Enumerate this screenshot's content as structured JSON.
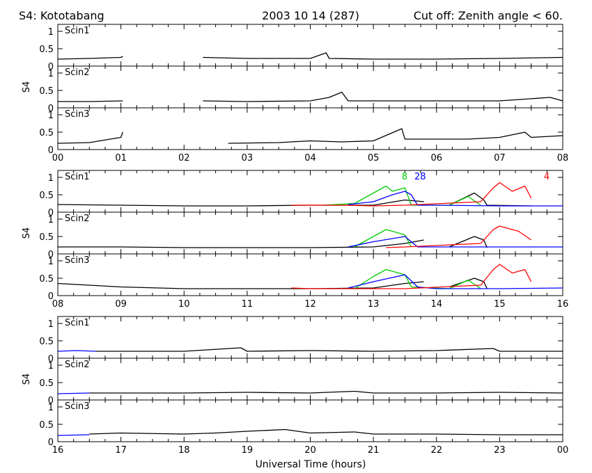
{
  "header": {
    "station": "S4: Kototabang",
    "date": "2003 10 14 (287)",
    "cutoff": "Cut off: Zenith angle < 60."
  },
  "chart_data": {
    "type": "line",
    "xlabel": "Universal Time (hours)",
    "ylabel": "S4",
    "ylim": [
      0,
      1.2
    ],
    "yticks": [
      "1",
      "0.5",
      "0"
    ],
    "grid": false,
    "rows": [
      {
        "range": [
          0,
          8
        ],
        "xticks": [
          "00",
          "01",
          "02",
          "03",
          "04",
          "05",
          "06",
          "07",
          "08"
        ],
        "panels": [
          {
            "label": "Scin1",
            "series": [
              {
                "color": "#000000",
                "x": [
                  0.0,
                  0.5,
                  1.0,
                  1.03
                ],
                "y": [
                  0.2,
                  0.22,
                  0.25,
                  0.28
                ]
              },
              {
                "color": "#000000",
                "x": [
                  2.3,
                  3.0,
                  4.0,
                  4.25,
                  4.3,
                  5.0,
                  6.0,
                  7.0,
                  8.0
                ],
                "y": [
                  0.25,
                  0.22,
                  0.22,
                  0.38,
                  0.22,
                  0.2,
                  0.2,
                  0.22,
                  0.25
                ]
              }
            ]
          },
          {
            "label": "Scin2",
            "series": [
              {
                "color": "#000000",
                "x": [
                  0.0,
                  0.5,
                  1.03
                ],
                "y": [
                  0.18,
                  0.18,
                  0.2
                ]
              },
              {
                "color": "#000000",
                "x": [
                  2.3,
                  3.0,
                  4.0,
                  4.3,
                  4.5,
                  4.6,
                  5.0,
                  6.0,
                  7.0,
                  7.8,
                  8.0
                ],
                "y": [
                  0.2,
                  0.18,
                  0.2,
                  0.3,
                  0.45,
                  0.2,
                  0.2,
                  0.2,
                  0.2,
                  0.3,
                  0.2
                ]
              }
            ]
          },
          {
            "label": "Scin3",
            "series": [
              {
                "color": "#000000",
                "x": [
                  0.0,
                  0.5,
                  1.0,
                  1.03
                ],
                "y": [
                  0.18,
                  0.2,
                  0.35,
                  0.5
                ]
              },
              {
                "color": "#000000",
                "x": [
                  2.7,
                  3.5,
                  4.0,
                  4.5,
                  5.0,
                  5.45,
                  5.5,
                  6.0,
                  6.5,
                  7.0,
                  7.4,
                  7.5,
                  8.0
                ],
                "y": [
                  0.18,
                  0.2,
                  0.25,
                  0.22,
                  0.25,
                  0.6,
                  0.3,
                  0.3,
                  0.3,
                  0.35,
                  0.5,
                  0.35,
                  0.4
                ]
              }
            ]
          }
        ]
      },
      {
        "range": [
          8,
          16
        ],
        "xticks": [
          "08",
          "09",
          "10",
          "11",
          "12",
          "13",
          "14",
          "15",
          "16"
        ],
        "panels": [
          {
            "label": "Scin1",
            "prn_labels": [
              {
                "text": "8",
                "x": 13.45,
                "color": "#00cc00"
              },
              {
                "text": "28",
                "x": 13.65,
                "color": "#0000ff"
              },
              {
                "text": "4",
                "x": 15.7,
                "color": "#ff0000"
              }
            ],
            "series": [
              {
                "color": "#000000",
                "x": [
                  8.0,
                  9.0,
                  10.0,
                  11.0,
                  12.0,
                  13.0,
                  13.5,
                  13.8
                ],
                "y": [
                  0.22,
                  0.2,
                  0.18,
                  0.18,
                  0.2,
                  0.2,
                  0.35,
                  0.3
                ]
              },
              {
                "color": "#000000",
                "x": [
                  14.2,
                  14.6,
                  14.75,
                  14.8,
                  15.5
                ],
                "y": [
                  0.2,
                  0.55,
                  0.35,
                  0.2,
                  0.18
                ]
              },
              {
                "color": "#00cc00",
                "x": [
                  12.2,
                  12.7,
                  13.0,
                  13.2,
                  13.3,
                  13.5,
                  13.6,
                  14.2,
                  14.5,
                  14.7
                ],
                "y": [
                  0.2,
                  0.25,
                  0.55,
                  0.75,
                  0.6,
                  0.7,
                  0.2,
                  0.2,
                  0.45,
                  0.2
                ]
              },
              {
                "color": "#0000ff",
                "x": [
                  12.6,
                  13.0,
                  13.3,
                  13.5,
                  13.6,
                  13.7,
                  14.0,
                  15.0,
                  16.0
                ],
                "y": [
                  0.22,
                  0.3,
                  0.5,
                  0.6,
                  0.5,
                  0.2,
                  0.2,
                  0.18,
                  0.18
                ]
              },
              {
                "color": "#ff0000",
                "x": [
                  11.7,
                  12.0,
                  12.5,
                  13.0,
                  13.5,
                  14.7,
                  14.9,
                  15.0,
                  15.2,
                  15.4,
                  15.5
                ],
                "y": [
                  0.2,
                  0.2,
                  0.2,
                  0.18,
                  0.2,
                  0.3,
                  0.7,
                  0.85,
                  0.6,
                  0.75,
                  0.4
                ]
              }
            ]
          },
          {
            "label": "Scin2",
            "series": [
              {
                "color": "#000000",
                "x": [
                  8.0,
                  9.0,
                  10.0,
                  11.0,
                  12.0,
                  13.0,
                  13.5,
                  13.8
                ],
                "y": [
                  0.2,
                  0.2,
                  0.18,
                  0.18,
                  0.18,
                  0.2,
                  0.3,
                  0.4
                ]
              },
              {
                "color": "#000000",
                "x": [
                  14.2,
                  14.6,
                  14.75,
                  14.8
                ],
                "y": [
                  0.2,
                  0.5,
                  0.4,
                  0.18
                ]
              },
              {
                "color": "#00cc00",
                "x": [
                  12.7,
                  13.0,
                  13.2,
                  13.5,
                  13.6
                ],
                "y": [
                  0.2,
                  0.5,
                  0.7,
                  0.55,
                  0.2
                ]
              },
              {
                "color": "#0000ff",
                "x": [
                  12.6,
                  13.0,
                  13.5,
                  13.7,
                  14.0,
                  15.0,
                  16.0
                ],
                "y": [
                  0.2,
                  0.35,
                  0.5,
                  0.2,
                  0.2,
                  0.2,
                  0.2
                ]
              },
              {
                "color": "#ff0000",
                "x": [
                  13.2,
                  13.5,
                  14.7,
                  14.9,
                  15.0,
                  15.3,
                  15.5
                ],
                "y": [
                  0.18,
                  0.2,
                  0.3,
                  0.7,
                  0.8,
                  0.65,
                  0.4
                ]
              }
            ]
          },
          {
            "label": "Scin3",
            "series": [
              {
                "color": "#000000",
                "x": [
                  8.0,
                  8.5,
                  9.0,
                  10.0,
                  11.0,
                  12.0,
                  13.0,
                  13.5,
                  13.8
                ],
                "y": [
                  0.35,
                  0.3,
                  0.25,
                  0.2,
                  0.2,
                  0.2,
                  0.22,
                  0.35,
                  0.4
                ]
              },
              {
                "color": "#000000",
                "x": [
                  14.2,
                  14.6,
                  14.75,
                  14.8
                ],
                "y": [
                  0.25,
                  0.5,
                  0.4,
                  0.2
                ]
              },
              {
                "color": "#00cc00",
                "x": [
                  12.7,
                  13.0,
                  13.2,
                  13.5,
                  13.6,
                  14.2,
                  14.5,
                  14.7
                ],
                "y": [
                  0.2,
                  0.55,
                  0.75,
                  0.6,
                  0.25,
                  0.2,
                  0.45,
                  0.2
                ]
              },
              {
                "color": "#0000ff",
                "x": [
                  12.6,
                  13.0,
                  13.5,
                  13.7,
                  14.0,
                  15.0,
                  16.0
                ],
                "y": [
                  0.22,
                  0.4,
                  0.6,
                  0.25,
                  0.2,
                  0.2,
                  0.22
                ]
              },
              {
                "color": "#ff0000",
                "x": [
                  11.7,
                  12.0,
                  12.5,
                  13.5,
                  14.7,
                  14.9,
                  15.0,
                  15.2,
                  15.4,
                  15.5
                ],
                "y": [
                  0.22,
                  0.2,
                  0.2,
                  0.2,
                  0.3,
                  0.75,
                  0.9,
                  0.65,
                  0.75,
                  0.4
                ]
              }
            ]
          }
        ]
      },
      {
        "range": [
          16,
          24
        ],
        "xticks": [
          "16",
          "17",
          "18",
          "19",
          "20",
          "21",
          "22",
          "23",
          "00"
        ],
        "panels": [
          {
            "label": "Scin1",
            "series": [
              {
                "color": "#0000ff",
                "x": [
                  16.0,
                  16.3,
                  16.6
                ],
                "y": [
                  0.2,
                  0.22,
                  0.2
                ]
              },
              {
                "color": "#000000",
                "x": [
                  16.6,
                  17.0,
                  18.0,
                  18.9,
                  19.0,
                  20.0,
                  21.0,
                  22.0,
                  22.9,
                  23.0,
                  24.0
                ],
                "y": [
                  0.2,
                  0.2,
                  0.2,
                  0.3,
                  0.2,
                  0.22,
                  0.2,
                  0.22,
                  0.28,
                  0.2,
                  0.2
                ]
              }
            ]
          },
          {
            "label": "Scin2",
            "series": [
              {
                "color": "#0000ff",
                "x": [
                  16.0,
                  16.5
                ],
                "y": [
                  0.18,
                  0.2
                ]
              },
              {
                "color": "#000000",
                "x": [
                  16.5,
                  17.0,
                  18.0,
                  19.0,
                  20.0,
                  20.7,
                  21.0,
                  22.0,
                  23.0,
                  24.0
                ],
                "y": [
                  0.2,
                  0.2,
                  0.2,
                  0.22,
                  0.2,
                  0.25,
                  0.2,
                  0.2,
                  0.22,
                  0.2
                ]
              }
            ]
          },
          {
            "label": "Scin3",
            "series": [
              {
                "color": "#0000ff",
                "x": [
                  16.0,
                  16.5
                ],
                "y": [
                  0.18,
                  0.2
                ]
              },
              {
                "color": "#000000",
                "x": [
                  16.5,
                  17.0,
                  18.0,
                  18.5,
                  19.0,
                  19.6,
                  20.0,
                  20.7,
                  21.0,
                  22.0,
                  23.0,
                  24.0
                ],
                "y": [
                  0.22,
                  0.25,
                  0.22,
                  0.25,
                  0.3,
                  0.35,
                  0.25,
                  0.28,
                  0.22,
                  0.22,
                  0.2,
                  0.2
                ]
              }
            ]
          }
        ]
      }
    ]
  }
}
